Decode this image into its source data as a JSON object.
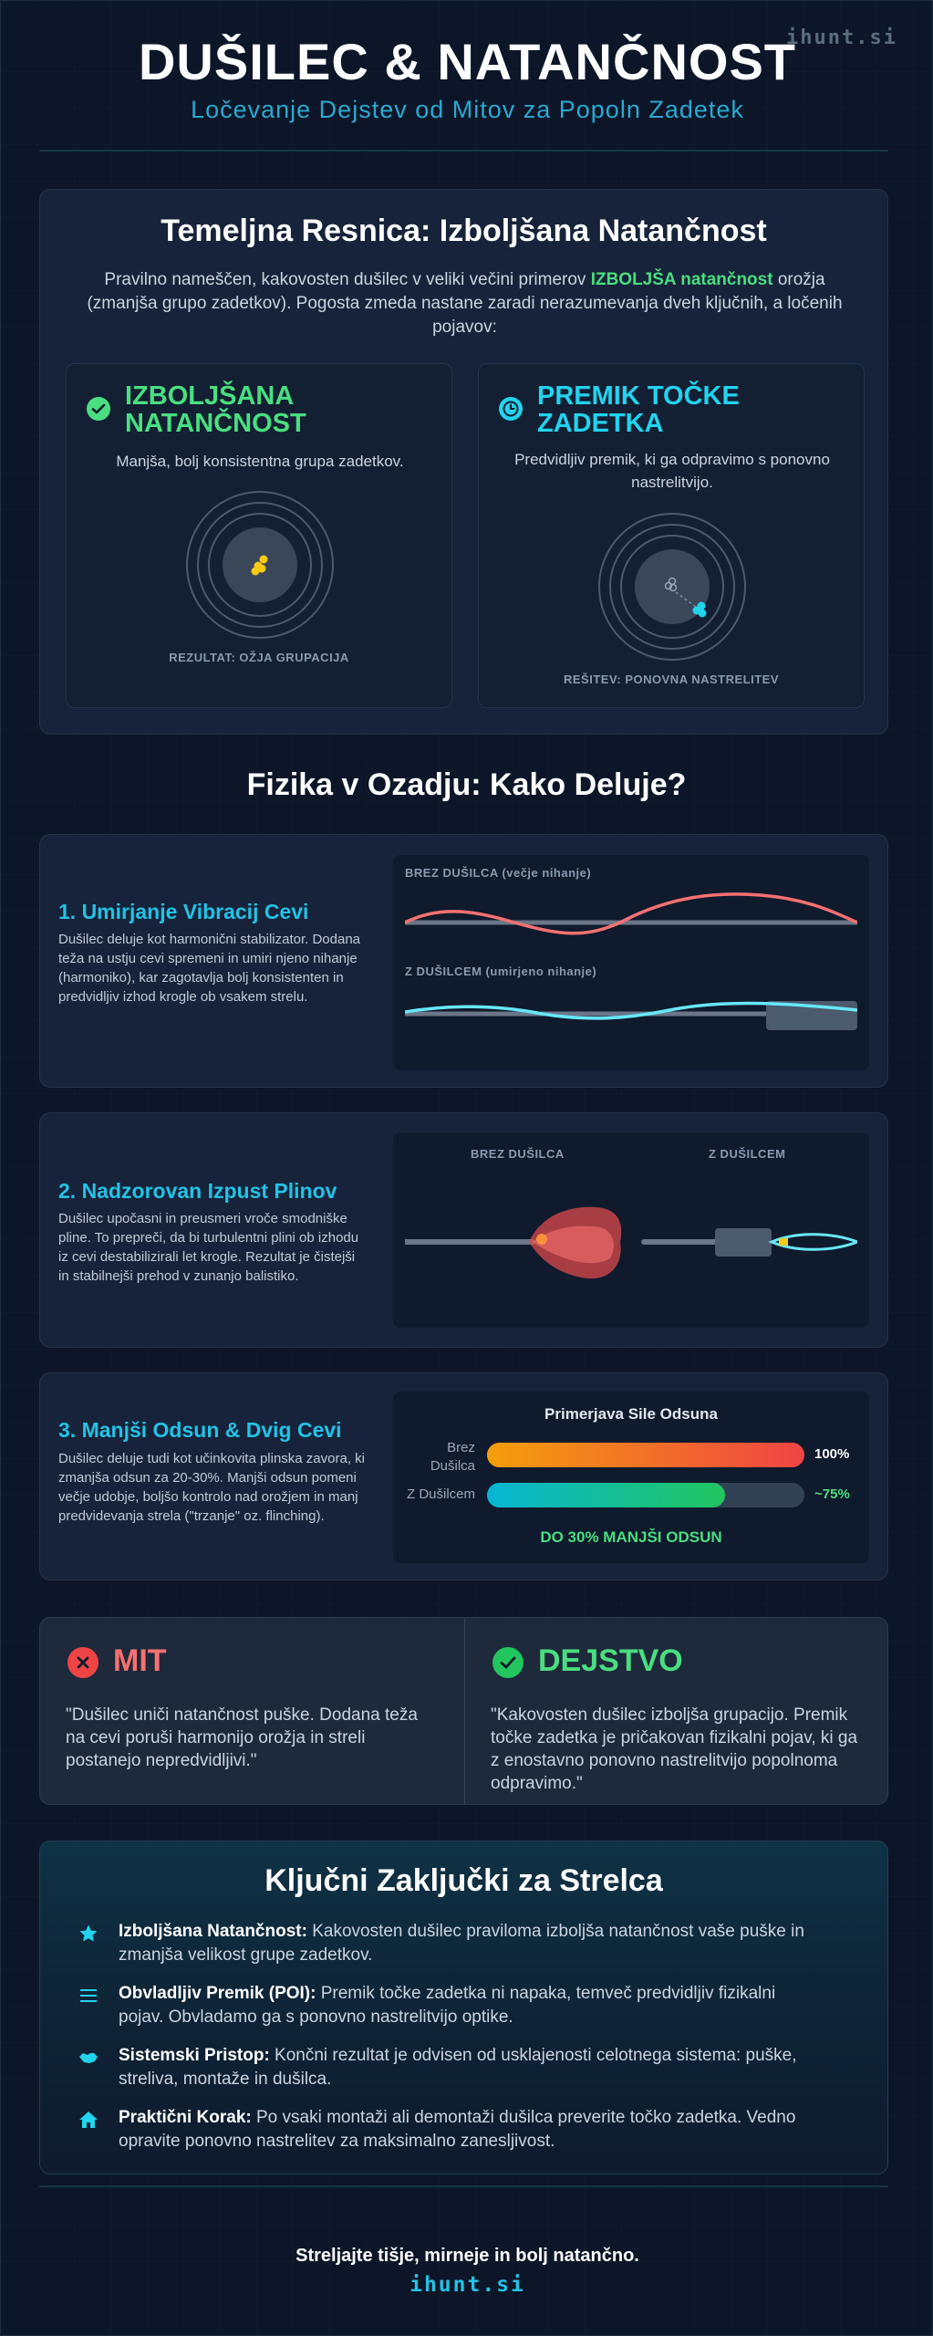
{
  "brand": "ihunt.si",
  "header": {
    "title": "DUŠILEC & NATANČNOST",
    "subtitle": "Ločevanje Dejstev od Mitov za Popoln Zadetek"
  },
  "fundamental": {
    "title": "Temeljna Resnica: Izboljšana Natančnost",
    "intro_before": "Pravilno nameščen, kakovosten dušilec v veliki večini primerov ",
    "intro_highlight": "IZBOLJŠA natančnost",
    "intro_after": " orožja (zmanjša grupo zadetkov). Pogosta zmeda nastane zaradi nerazumevanja dveh ključnih, a ločenih pojavov:",
    "cards": [
      {
        "title": "IZBOLJŠANA NATANČNOST",
        "description": "Manjša, bolj konsistentna grupa zadetkov.",
        "caption": "REZULTAT: OŽJA GRUPACIJA",
        "icon": "check-circle-icon",
        "color": "#4ade80"
      },
      {
        "title": "PREMIK TOČKE ZADETKA",
        "description": "Predvidljiv premik, ki ga odpravimo s ponovno nastrelitvijo.",
        "caption": "REŠITEV: PONOVNA NASTRELITEV",
        "icon": "clock-icon",
        "color": "#22d3ee"
      }
    ]
  },
  "physics": {
    "title": "Fizika v Ozadju: Kako Deluje?",
    "sections": [
      {
        "title": "1. Umirjanje Vibracij Cevi",
        "text": "Dušilec deluje kot harmonični stabilizator. Dodana teža na ustju cevi spremeni in umiri njeno nihanje (harmoniko), kar zagotavlja bolj konsistenten in predvidljiv izhod krogle ob vsakem strelu.",
        "labels": [
          "BREZ DUŠILCA (večje nihanje)",
          "Z DUŠILCEM (umirjeno nihanje)"
        ]
      },
      {
        "title": "2. Nadzorovan Izpust Plinov",
        "text": "Dušilec upočasni in preusmeri vroče smodniške pline. To prepreči, da bi turbulentni plini ob izhodu iz cevi destabilizirali let krogle. Rezultat je čistejši in stabilnejši prehod v zunanjo balistiko.",
        "labels": [
          "BREZ DUŠILCA",
          "Z DUŠILCEM"
        ]
      },
      {
        "title": "3. Manjši Odsun & Dvig Cevi",
        "text": "Dušilec deluje tudi kot učinkovita plinska zavora, ki zmanjša odsun za 20-30%. Manjši odsun pomeni večje udobje, boljšo kontrolo nad orožjem in manj predvidevanja strela (\"trzanje\" oz. flinching).",
        "chart_title": "Primerjava Sile Odsuna",
        "bars": [
          {
            "label": "Brez Dušilca",
            "value_label": "100%",
            "fraction": 1.0
          },
          {
            "label": "Z Dušilcem",
            "value_label": "~75%",
            "fraction": 0.75
          }
        ],
        "conclusion": "DO 30% MANJŠI ODSUN"
      }
    ]
  },
  "myth_fact": {
    "myth_title": "MIT",
    "myth_text": "\"Dušilec uniči natančnost puške. Dodana teža na cevi poruši harmonijo orožja in streli postanejo nepredvidljivi.\"",
    "fact_title": "DEJSTVO",
    "fact_text": "\"Kakovosten dušilec izboljša grupacijo. Premik točke zadetka je pričakovan fizikalni pojav, ki ga z enostavno ponovno nastrelitvijo popolnoma odpravimo.\""
  },
  "takeaways": {
    "title": "Ključni Zaključki za Strelca",
    "items": [
      {
        "icon": "star-icon",
        "bold": "Izboljšana Natančnost:",
        "text": " Kakovosten dušilec praviloma izboljša natančnost vaše puške in zmanjša velikost grupe zadetkov."
      },
      {
        "icon": "sliders-icon",
        "bold": "Obvladljiv Premik (POI):",
        "text": " Premik točke zadetka ni napaka, temveč predvidljiv fizikalni pojav. Obvladamo ga s ponovno nastrelitvijo optike."
      },
      {
        "icon": "handshake-icon",
        "bold": "Sistemski Pristop:",
        "text": " Končni rezultat je odvisen od usklajenosti celotnega sistema: puške, streliva, montaže in dušilca."
      },
      {
        "icon": "home-icon",
        "bold": "Praktični Korak:",
        "text": " Po vsaki montaži ali demontaži dušilca preverite točko zadetka. Vedno opravite ponovno nastrelitev za maksimalno zanesljivost."
      }
    ]
  },
  "footer": {
    "tagline": "Streljajte tišje, mirneje in bolj natančno.",
    "brand": "ihunt.si"
  }
}
